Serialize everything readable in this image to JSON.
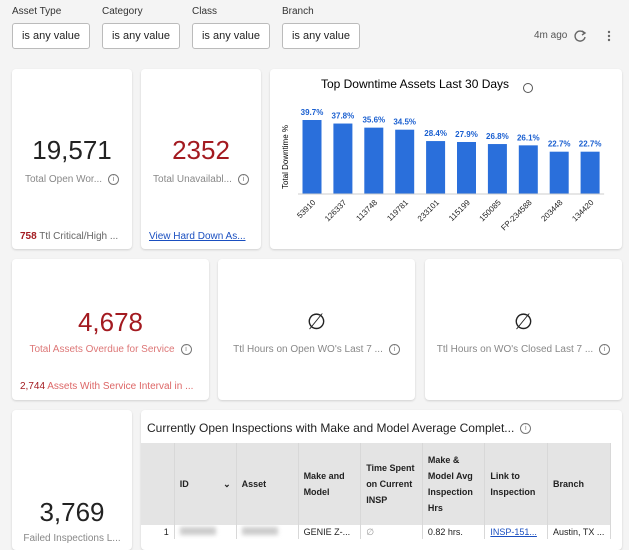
{
  "filters": [
    {
      "label": "Asset Type",
      "value": "is any value"
    },
    {
      "label": "Category",
      "value": "is any value"
    },
    {
      "label": "Class",
      "value": "is any value"
    },
    {
      "label": "Branch",
      "value": "is any value"
    }
  ],
  "header": {
    "updated": "4m ago"
  },
  "tiles": {
    "open_wo": {
      "value": "19,571",
      "label": "Total Open Wor...",
      "sub_value": "758",
      "sub_label": "Ttl Critical/High ..."
    },
    "unavailable": {
      "value": "2352",
      "label": "Total Unavailabl...",
      "link": "View Hard Down As..."
    },
    "overdue": {
      "value": "4,678",
      "label": "Total Assets Overdue for Service",
      "sub_value": "2,744",
      "sub_label": "Assets With Service Interval in ..."
    },
    "hours_open": {
      "value": "∅",
      "label": "Ttl Hours on Open WO's Last 7 ..."
    },
    "hours_closed": {
      "value": "∅",
      "label": "Ttl Hours on WO's Closed Last 7 ..."
    },
    "failed": {
      "value": "3,769",
      "label": "Failed Inspections L..."
    }
  },
  "chart_data": {
    "type": "bar",
    "title": "Top Downtime Assets Last 30 Days",
    "y_label": "Total Downtime %",
    "categories": [
      "53910",
      "126337",
      "113748",
      "119781",
      "233101",
      "115199",
      "150085",
      "FP-234588",
      "203448",
      "134420"
    ],
    "values": [
      39.7,
      37.8,
      35.6,
      34.5,
      28.4,
      27.9,
      26.8,
      26.1,
      22.7,
      22.7
    ],
    "value_labels": [
      "39.7%",
      "37.8%",
      "35.6%",
      "34.5%",
      "28.4%",
      "27.9%",
      "26.8%",
      "26.1%",
      "22.7%",
      "22.7%"
    ],
    "color": "#2a6fdb"
  },
  "table": {
    "title": "Currently Open Inspections with Make and Model Average Complet...",
    "columns": [
      "ID",
      "Asset",
      "Make and Model",
      "Time Spent on Current INSP",
      "Make & Model Avg Inspection Hrs",
      "Link to Inspection",
      "Branch"
    ],
    "row": {
      "index": "1",
      "make_model": "GENIE Z-...",
      "time_spent": "∅",
      "avg_hrs": "0.82 hrs.",
      "link": "INSP-151...",
      "branch": "Austin, TX ..."
    }
  }
}
